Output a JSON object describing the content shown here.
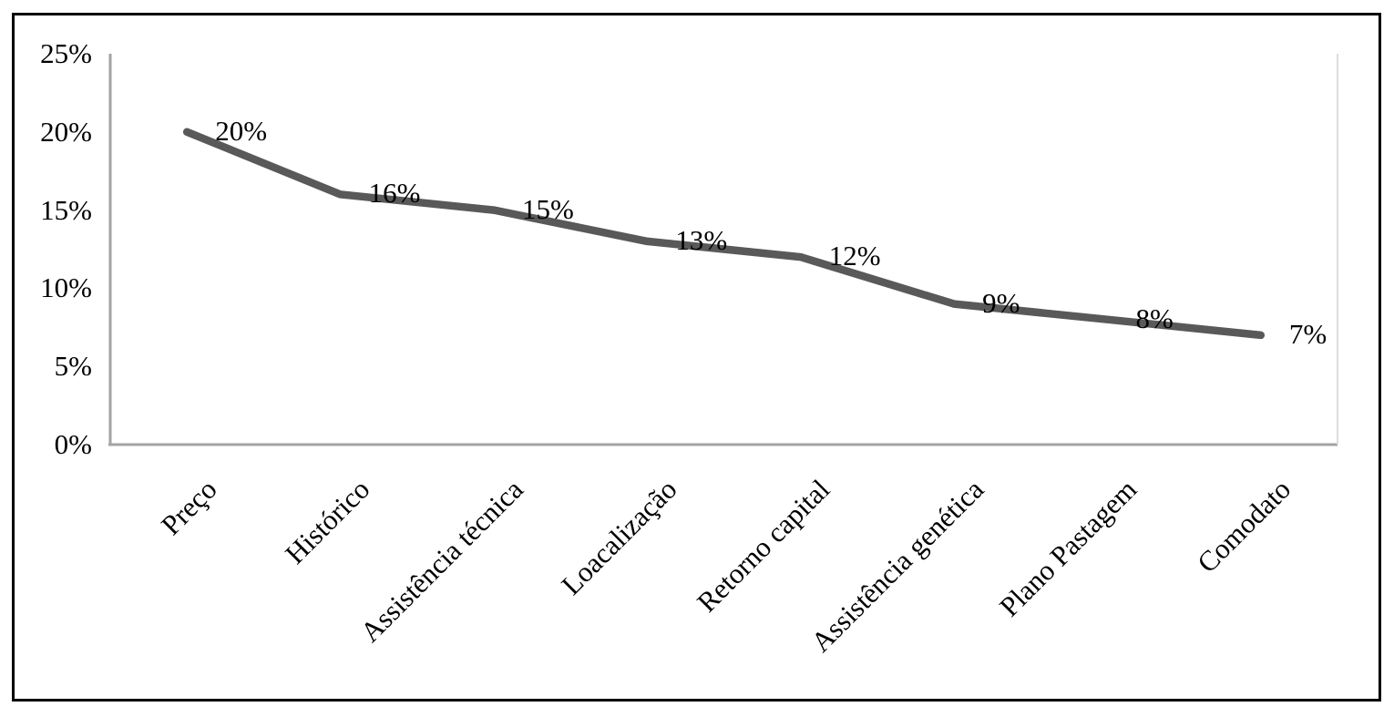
{
  "chart_data": {
    "type": "line",
    "title": "",
    "xlabel": "",
    "ylabel": "",
    "categories": [
      "Preço",
      "Histórico",
      "Assistência técnica",
      "Loacalização",
      "Retorno capital",
      "Assistência genética",
      "Plano Pastagem",
      "Comodato"
    ],
    "series": [
      {
        "name": "",
        "values": [
          20,
          16,
          15,
          13,
          12,
          9,
          8,
          7
        ],
        "data_labels": [
          "20%",
          "16%",
          "15%",
          "13%",
          "12%",
          "9%",
          "8%",
          "7%"
        ]
      }
    ],
    "y_axis": {
      "tick_values": [
        25,
        20,
        15,
        10,
        5,
        0
      ],
      "tick_labels": [
        "25%",
        "20%",
        "15%",
        "10%",
        "5%",
        "0%"
      ],
      "min": 0,
      "max": 25
    },
    "legend": "none",
    "grid": false,
    "colors": {
      "line": "#595959",
      "axis": "#a3a3a3",
      "plot_right_border": "#dcdcdc",
      "frame_border": "#000000",
      "background": "#ffffff",
      "label_text": "#000000"
    }
  }
}
